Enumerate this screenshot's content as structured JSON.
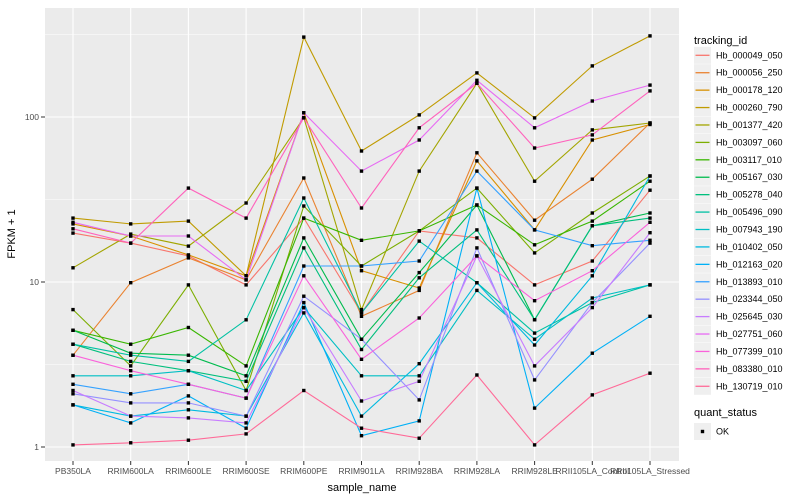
{
  "figure": {
    "background": "#FFFFFF",
    "panel_background": "#EBEBEB",
    "gridline_color": "#FFFFFF",
    "tick_color": "#333333",
    "tick_label_color": "#4D4D4D",
    "point_color": "#000000",
    "legend_key_background": "#EFEFEF"
  },
  "chart_data": {
    "type": "line",
    "title": "",
    "xlabel": "sample_name",
    "ylabel": "FPKM + 1",
    "y_scale": "log10",
    "y_tick_labels": [
      "1",
      "10",
      "100"
    ],
    "y_tick_values": [
      1,
      10,
      100
    ],
    "y_minor_values": [
      3.1623,
      31.623,
      316.23
    ],
    "grid": true,
    "legend_position": "right",
    "point_shape": "filled-square",
    "categories": [
      "PB350LA",
      "RRIM600LA",
      "RRIM600LE",
      "RRIM600SE",
      "RRIM600PE",
      "RRIM901LA",
      "RRIM928BA",
      "RRIM928LA",
      "RRIM928LE",
      "RRII105LA_Control",
      "RRII105LA_Stressed"
    ],
    "legend": {
      "title": "tracking_id"
    },
    "legend2": {
      "title": "quant_status",
      "items": [
        "OK"
      ]
    },
    "series": [
      {
        "name": "Hb_000049_050",
        "color": "#F8766D",
        "values": [
          19.8,
          17.2,
          14.4,
          9.6,
          24.4,
          6.5,
          20.4,
          18.5,
          9.6,
          13.4,
          36
        ]
      },
      {
        "name": "Hb_000056_250",
        "color": "#EA8331",
        "values": [
          3.6,
          9.9,
          14.0,
          10.3,
          42.7,
          6.2,
          8.9,
          60.7,
          23.7,
          42,
          92
        ]
      },
      {
        "name": "Hb_000178_120",
        "color": "#D89000",
        "values": [
          22.5,
          19.0,
          14.6,
          10.9,
          106,
          11.7,
          9.2,
          54.2,
          20.7,
          72.5,
          90
        ]
      },
      {
        "name": "Hb_000260_790",
        "color": "#C09B00",
        "values": [
          24.4,
          22.5,
          23.4,
          10.9,
          305,
          62.2,
          103,
          185,
          98.8,
          204,
          310
        ]
      },
      {
        "name": "Hb_001377_420",
        "color": "#A3A500",
        "values": [
          12.2,
          19.5,
          16.5,
          30.1,
          99,
          6.8,
          47,
          160,
          40.8,
          83.5,
          92
        ]
      },
      {
        "name": "Hb_003097_060",
        "color": "#7CAE00",
        "values": [
          6.8,
          3.1,
          9.6,
          2.2,
          28.9,
          12.5,
          20.4,
          37.1,
          15.0,
          26.2,
          43.9
        ]
      },
      {
        "name": "Hb_003117_010",
        "color": "#39B600",
        "values": [
          5.1,
          4.2,
          5.3,
          3.1,
          24.4,
          17.9,
          20.4,
          29.3,
          16.8,
          23.4,
          40.8
        ]
      },
      {
        "name": "Hb_005167_030",
        "color": "#00BB4E",
        "values": [
          5.1,
          3.7,
          3.6,
          2.7,
          18.5,
          4.5,
          11.4,
          29.3,
          5.9,
          21.9,
          26.2
        ]
      },
      {
        "name": "Hb_005278_040",
        "color": "#00BF7D",
        "values": [
          4.2,
          3.3,
          2.9,
          2.5,
          16.1,
          3.9,
          10.6,
          20.7,
          5.9,
          21.9,
          24.4
        ]
      },
      {
        "name": "Hb_005496_090",
        "color": "#00C1A3",
        "values": [
          4.2,
          3.6,
          3.3,
          5.9,
          32.3,
          6.5,
          17.7,
          9.9,
          4.9,
          7.5,
          9.6
        ]
      },
      {
        "name": "Hb_007943_190",
        "color": "#00BFC4",
        "values": [
          2.7,
          2.7,
          2.9,
          2.2,
          7.0,
          2.7,
          2.7,
          8.9,
          4.5,
          8.0,
          9.6
        ]
      },
      {
        "name": "Hb_010402_050",
        "color": "#00BAE0",
        "values": [
          1.8,
          1.54,
          1.68,
          1.54,
          6.5,
          1.54,
          3.2,
          9.9,
          4.15,
          10.9,
          43.9
        ]
      },
      {
        "name": "Hb_012163_020",
        "color": "#00B0F6",
        "values": [
          1.8,
          1.4,
          2.04,
          1.3,
          7.5,
          1.17,
          1.44,
          37.1,
          1.72,
          3.7,
          6.2
        ]
      },
      {
        "name": "Hb_013893_010",
        "color": "#35A2FF",
        "values": [
          2.4,
          2.1,
          2.4,
          1.98,
          12.5,
          12.5,
          13.4,
          47,
          20.7,
          16.6,
          17.9
        ]
      },
      {
        "name": "Hb_023344_050",
        "color": "#9590FF",
        "values": [
          2.1,
          1.85,
          1.85,
          1.54,
          8.2,
          4.5,
          1.93,
          16.1,
          2.55,
          7.5,
          17.2
        ]
      },
      {
        "name": "Hb_025645_030",
        "color": "#C77CFF",
        "values": [
          2.2,
          1.54,
          1.5,
          1.4,
          7.0,
          1.9,
          2.5,
          14.4,
          3.1,
          7.0,
          19.9
        ]
      },
      {
        "name": "Hb_027751_060",
        "color": "#E76BF3",
        "values": [
          23,
          19,
          19,
          10.3,
          106,
          47,
          72.5,
          167,
          86,
          125,
          156
        ]
      },
      {
        "name": "Hb_077399_010",
        "color": "#FA62DB",
        "values": [
          3.6,
          2.9,
          2.4,
          1.98,
          10.9,
          3.4,
          6.05,
          14.4,
          7.7,
          11.7,
          23
        ]
      },
      {
        "name": "Hb_083380_010",
        "color": "#FF62BC",
        "values": [
          21,
          17.2,
          37.1,
          24.4,
          98.8,
          28.1,
          86,
          160,
          64.9,
          77.9,
          144
        ]
      },
      {
        "name": "Hb_130719_010",
        "color": "#FF6A98",
        "values": [
          1.03,
          1.06,
          1.1,
          1.2,
          2.2,
          1.3,
          1.13,
          2.73,
          1.03,
          2.07,
          2.8
        ]
      }
    ]
  }
}
